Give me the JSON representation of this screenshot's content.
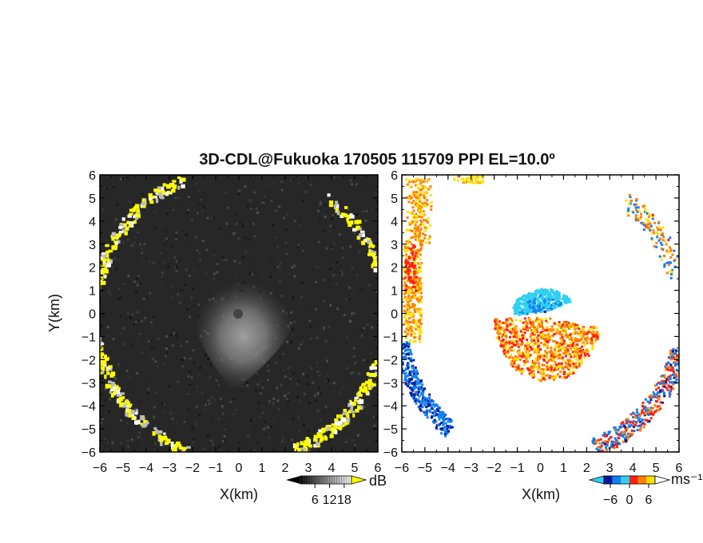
{
  "chart_data": {
    "type": "heatmap",
    "title": "3D-CDL@Fukuoka 170505 115709 PPI EL=10.0º",
    "panels": [
      {
        "name": "reflectivity",
        "xlabel": "X(km)",
        "ylabel": "Y(km)",
        "xlim": [
          -6,
          6
        ],
        "ylim": [
          -6,
          6
        ],
        "xticks": [
          "−6",
          "−5",
          "−4",
          "−3",
          "−2",
          "−1",
          "0",
          "1",
          "2",
          "3",
          "4",
          "5",
          "6"
        ],
        "yticks": [
          "−6",
          "−5",
          "−4",
          "−3",
          "−2",
          "−1",
          "0",
          "1",
          "2",
          "3",
          "4",
          "5",
          "6"
        ],
        "colorbar": {
          "unit": "dB",
          "ticks": [
            "6",
            "12",
            "18"
          ],
          "tick_values": [
            6,
            12,
            18
          ],
          "range": [
            0,
            21
          ],
          "colors": [
            "#000000",
            "#ffffff"
          ],
          "over_color": "#ffff00"
        },
        "features": [
          {
            "label": "echo",
            "center_x": 0,
            "center_y": 0,
            "radius_km": 2.5,
            "peak_value_db": 12
          },
          {
            "label": "edge-clutter",
            "ring_radius_km": 6.3,
            "value": "over"
          }
        ]
      },
      {
        "name": "doppler_velocity",
        "xlabel": "X(km)",
        "ylabel": "",
        "xlim": [
          -6,
          6
        ],
        "ylim": [
          -6,
          6
        ],
        "xticks": [
          "−6",
          "−5",
          "−4",
          "−3",
          "−2",
          "−1",
          "0",
          "1",
          "2",
          "3",
          "4",
          "5",
          "6"
        ],
        "yticks": [
          "−6",
          "−5",
          "−4",
          "−3",
          "−2",
          "−1",
          "0",
          "1",
          "2",
          "3",
          "4",
          "5",
          "6"
        ],
        "colorbar": {
          "unit": "ms⁻¹",
          "ticks": [
            "−6",
            "0",
            "6"
          ],
          "tick_values": [
            -6,
            0,
            6
          ],
          "range": [
            -8,
            8
          ],
          "colors": [
            "#0018a0",
            "#1080f0",
            "#30d0f0",
            "#ff2010",
            "#ff8000",
            "#ffe000"
          ]
        },
        "features": [
          {
            "label": "near-radar-approaching",
            "center_x": 0,
            "center_y": 0.5,
            "velocity": -3
          },
          {
            "label": "near-radar-receding",
            "center_x": 0.6,
            "center_y": -1.2,
            "velocity": 4
          },
          {
            "label": "west-edge-receding",
            "velocity": 5
          },
          {
            "label": "southwest-edge-approaching",
            "velocity": -6
          },
          {
            "label": "southeast-edge-mixed",
            "velocity": -2
          }
        ]
      }
    ]
  }
}
